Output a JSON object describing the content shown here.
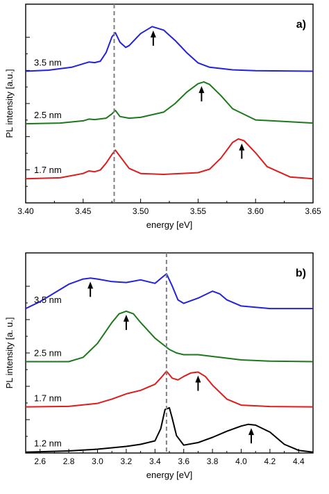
{
  "chart_data": [
    {
      "type": "line",
      "panel_label": "a)",
      "xlabel": "energy [eV]",
      "ylabel": "PL intensity [a.u.]",
      "xlim": [
        3.4,
        3.65
      ],
      "ylim": [
        0,
        1.15
      ],
      "x_ticks": [
        3.4,
        3.45,
        3.5,
        3.55,
        3.6,
        3.65
      ],
      "x_tick_labels": [
        "3.40",
        "3.45",
        "3.50",
        "3.55",
        "3.60",
        "3.65"
      ],
      "vertical_reference_line": 3.477,
      "colors": {
        "3.5 nm": "#2222dd",
        "2.5 nm": "#1a7a1a",
        "1.7 nm": "#e01b1b"
      },
      "series": [
        {
          "label": "3.5 nm",
          "color": "#2222dd",
          "x": [
            3.4,
            3.42,
            3.44,
            3.45,
            3.455,
            3.46,
            3.465,
            3.47,
            3.475,
            3.478,
            3.482,
            3.487,
            3.49,
            3.5,
            3.51,
            3.52,
            3.53,
            3.54,
            3.55,
            3.56,
            3.58,
            3.6,
            3.65
          ],
          "y": [
            0.762,
            0.768,
            0.785,
            0.805,
            0.815,
            0.812,
            0.82,
            0.87,
            0.96,
            0.985,
            0.93,
            0.9,
            0.91,
            0.98,
            1.02,
            1.0,
            0.94,
            0.87,
            0.81,
            0.785,
            0.77,
            0.765,
            0.762
          ]
        },
        {
          "label": "2.5 nm",
          "color": "#1a7a1a",
          "x": [
            3.4,
            3.43,
            3.45,
            3.455,
            3.46,
            3.47,
            3.475,
            3.478,
            3.482,
            3.49,
            3.5,
            3.52,
            3.53,
            3.54,
            3.55,
            3.555,
            3.56,
            3.57,
            3.58,
            3.6,
            3.65
          ],
          "y": [
            0.458,
            0.462,
            0.475,
            0.485,
            0.482,
            0.49,
            0.515,
            0.535,
            0.5,
            0.49,
            0.495,
            0.525,
            0.575,
            0.64,
            0.69,
            0.7,
            0.685,
            0.62,
            0.545,
            0.48,
            0.462
          ]
        },
        {
          "label": "1.7 nm",
          "color": "#e01b1b",
          "x": [
            3.4,
            3.43,
            3.45,
            3.455,
            3.46,
            3.465,
            3.47,
            3.475,
            3.478,
            3.482,
            3.49,
            3.5,
            3.52,
            3.55,
            3.56,
            3.57,
            3.58,
            3.585,
            3.59,
            3.6,
            3.61,
            3.63,
            3.65
          ],
          "y": [
            0.14,
            0.145,
            0.17,
            0.185,
            0.18,
            0.19,
            0.23,
            0.28,
            0.305,
            0.27,
            0.2,
            0.17,
            0.165,
            0.175,
            0.195,
            0.26,
            0.35,
            0.37,
            0.36,
            0.29,
            0.21,
            0.15,
            0.14
          ]
        }
      ],
      "annotations": [
        {
          "type": "arrow",
          "series": "3.5 nm",
          "x": 3.511
        },
        {
          "type": "arrow",
          "series": "2.5 nm",
          "x": 3.553
        },
        {
          "type": "arrow",
          "series": "1.7 nm",
          "x": 3.588
        }
      ]
    },
    {
      "type": "line",
      "panel_label": "b)",
      "xlabel": "energy [eV]",
      "ylabel": "PL intensity [a. u.]",
      "xlim": [
        2.5,
        4.5
      ],
      "ylim": [
        0,
        1.15
      ],
      "x_ticks": [
        2.6,
        2.8,
        3.0,
        3.2,
        3.4,
        3.6,
        3.8,
        4.0,
        4.2,
        4.4
      ],
      "x_tick_labels": [
        "2.6",
        "2.8",
        "3.0",
        "3.2",
        "3.4",
        "3.6",
        "3.8",
        "4.0",
        "4.2",
        "4.4"
      ],
      "vertical_reference_line": 3.48,
      "colors": {
        "3.5 nm": "#2222dd",
        "2.5 nm": "#1a7a1a",
        "1.7 nm": "#e01b1b",
        "1.2 nm": "#000000"
      },
      "series": [
        {
          "label": "3.5 nm",
          "color": "#2222dd",
          "x": [
            2.5,
            2.6,
            2.7,
            2.8,
            2.9,
            2.95,
            3.0,
            3.1,
            3.2,
            3.3,
            3.4,
            3.45,
            3.48,
            3.52,
            3.56,
            3.6,
            3.7,
            3.8,
            3.85,
            3.9,
            4.0,
            4.2,
            4.5
          ],
          "y": [
            0.83,
            0.87,
            0.92,
            0.97,
            1.0,
            1.005,
            1.0,
            0.985,
            0.98,
            0.995,
            0.975,
            1.01,
            1.03,
            0.96,
            0.88,
            0.86,
            0.89,
            0.93,
            0.915,
            0.88,
            0.845,
            0.83,
            0.83
          ]
        },
        {
          "label": "2.5 nm",
          "color": "#1a7a1a",
          "x": [
            2.5,
            2.8,
            2.9,
            3.0,
            3.1,
            3.15,
            3.2,
            3.25,
            3.3,
            3.4,
            3.5,
            3.55,
            3.6,
            3.7,
            3.8,
            4.0,
            4.2,
            4.5
          ],
          "y": [
            0.525,
            0.525,
            0.55,
            0.63,
            0.75,
            0.8,
            0.815,
            0.8,
            0.75,
            0.66,
            0.595,
            0.575,
            0.565,
            0.565,
            0.555,
            0.535,
            0.528,
            0.525
          ]
        },
        {
          "label": "1.7 nm",
          "color": "#e01b1b",
          "x": [
            2.5,
            2.8,
            3.0,
            3.1,
            3.2,
            3.3,
            3.4,
            3.45,
            3.48,
            3.52,
            3.56,
            3.6,
            3.65,
            3.7,
            3.75,
            3.8,
            3.9,
            4.0,
            4.2,
            4.5
          ],
          "y": [
            0.265,
            0.268,
            0.285,
            0.31,
            0.34,
            0.36,
            0.395,
            0.44,
            0.47,
            0.43,
            0.42,
            0.44,
            0.46,
            0.465,
            0.44,
            0.39,
            0.31,
            0.275,
            0.267,
            0.265
          ]
        },
        {
          "label": "1.2 nm",
          "color": "#000000",
          "x": [
            2.5,
            2.8,
            3.0,
            3.2,
            3.3,
            3.4,
            3.44,
            3.47,
            3.5,
            3.52,
            3.55,
            3.6,
            3.7,
            3.8,
            3.9,
            4.0,
            4.05,
            4.1,
            4.2,
            4.3,
            4.4,
            4.5
          ],
          "y": [
            0.005,
            0.012,
            0.022,
            0.038,
            0.05,
            0.07,
            0.14,
            0.25,
            0.26,
            0.2,
            0.1,
            0.045,
            0.06,
            0.09,
            0.125,
            0.155,
            0.165,
            0.16,
            0.12,
            0.05,
            0.015,
            0.005
          ]
        }
      ],
      "annotations": [
        {
          "type": "arrow",
          "series": "3.5 nm",
          "x": 2.95
        },
        {
          "type": "arrow",
          "series": "2.5 nm",
          "x": 3.2
        },
        {
          "type": "arrow",
          "series": "1.7 nm",
          "x": 3.7
        },
        {
          "type": "arrow",
          "series": "1.2 nm",
          "x": 4.07
        }
      ]
    }
  ]
}
